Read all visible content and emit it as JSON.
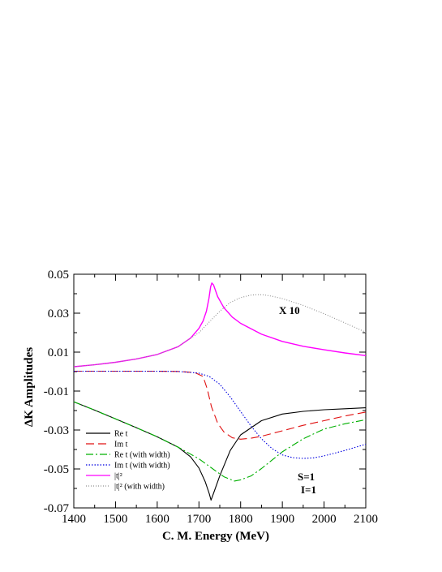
{
  "chart_data": {
    "type": "line",
    "title": "",
    "xlabel": "C. M. Energy (MeV)",
    "ylabel": "ΔK Amplitudes",
    "xlim": [
      1400,
      2100
    ],
    "ylim": [
      -0.07,
      0.05
    ],
    "xticks": [
      1400,
      1500,
      1600,
      1700,
      1800,
      1900,
      2000,
      2100
    ],
    "yticks": [
      -0.07,
      -0.05,
      -0.03,
      -0.01,
      0.01,
      0.03,
      0.05
    ],
    "xtick_labels": [
      "1400",
      "1500",
      "1600",
      "1700",
      "1800",
      "1900",
      "2000",
      "2100"
    ],
    "ytick_labels": [
      "-0.07",
      "-0.05",
      "-0.03",
      "-0.01",
      "0.01",
      "0.03",
      "0.05"
    ],
    "grid": false,
    "legend_position": "bottom-left",
    "annotations": {
      "scale_factor": "X 10",
      "S": "S=1",
      "I": "I=1"
    },
    "series": [
      {
        "name": "Re t",
        "color": "#000000",
        "dash": "solid",
        "x": [
          1400,
          1450,
          1500,
          1550,
          1600,
          1650,
          1680,
          1700,
          1715,
          1725,
          1729,
          1735,
          1750,
          1775,
          1800,
          1850,
          1900,
          1950,
          2000,
          2050,
          2100
        ],
        "y": [
          -0.0155,
          -0.0198,
          -0.0243,
          -0.0288,
          -0.0335,
          -0.0388,
          -0.0438,
          -0.0495,
          -0.0565,
          -0.0628,
          -0.066,
          -0.0625,
          -0.0535,
          -0.0405,
          -0.0325,
          -0.0252,
          -0.0218,
          -0.0204,
          -0.0196,
          -0.0191,
          -0.0186
        ]
      },
      {
        "name": "Im t",
        "color": "#e01010",
        "dash": "long-dash",
        "x": [
          1400,
          1500,
          1600,
          1650,
          1690,
          1710,
          1720,
          1730,
          1745,
          1760,
          1780,
          1800,
          1825,
          1850,
          1900,
          1950,
          2000,
          2050,
          2100
        ],
        "y": [
          0.0002,
          0.0002,
          0.0002,
          0.0001,
          -0.0005,
          -0.0025,
          -0.009,
          -0.018,
          -0.0265,
          -0.031,
          -0.034,
          -0.0347,
          -0.0342,
          -0.0332,
          -0.0304,
          -0.0276,
          -0.0252,
          -0.0228,
          -0.0208
        ]
      },
      {
        "name": "Re t (with width)",
        "color": "#00b000",
        "dash": "dash-dot",
        "x": [
          1400,
          1450,
          1500,
          1550,
          1600,
          1650,
          1700,
          1740,
          1760,
          1785,
          1800,
          1825,
          1850,
          1900,
          1950,
          2000,
          2050,
          2100
        ],
        "y": [
          -0.0155,
          -0.0198,
          -0.0243,
          -0.0288,
          -0.0335,
          -0.0388,
          -0.0448,
          -0.051,
          -0.054,
          -0.0562,
          -0.0556,
          -0.0536,
          -0.0498,
          -0.0412,
          -0.0345,
          -0.0295,
          -0.0268,
          -0.0247
        ]
      },
      {
        "name": "Im t (with width)",
        "color": "#0000e0",
        "dash": "dotted",
        "x": [
          1400,
          1500,
          1600,
          1650,
          1700,
          1725,
          1750,
          1775,
          1800,
          1825,
          1850,
          1875,
          1900,
          1925,
          1950,
          1975,
          2000,
          2050,
          2100
        ],
        "y": [
          0.0002,
          0.0002,
          0.0002,
          0.0001,
          -0.0008,
          -0.0025,
          -0.0065,
          -0.013,
          -0.0205,
          -0.028,
          -0.0345,
          -0.0395,
          -0.0428,
          -0.0442,
          -0.0446,
          -0.0443,
          -0.0433,
          -0.0405,
          -0.0373
        ]
      },
      {
        "name": "|t|²",
        "color": "#ff00ff",
        "dash": "solid",
        "x": [
          1400,
          1450,
          1500,
          1550,
          1600,
          1650,
          1680,
          1700,
          1710,
          1718,
          1724,
          1728,
          1731,
          1735,
          1745,
          1760,
          1780,
          1800,
          1850,
          1900,
          1950,
          2000,
          2050,
          2100
        ],
        "y": [
          0.0025,
          0.0035,
          0.0048,
          0.0065,
          0.0088,
          0.0128,
          0.0172,
          0.0222,
          0.026,
          0.031,
          0.0375,
          0.0435,
          0.0455,
          0.0445,
          0.0385,
          0.0328,
          0.028,
          0.0248,
          0.0192,
          0.0155,
          0.013,
          0.0112,
          0.0096,
          0.0082
        ]
      },
      {
        "name": "|t|² (with width)",
        "color": "#909090",
        "dash": "fine-dotted",
        "x": [
          1400,
          1450,
          1500,
          1550,
          1600,
          1650,
          1700,
          1725,
          1750,
          1775,
          1800,
          1825,
          1840,
          1855,
          1875,
          1900,
          1950,
          2000,
          2050,
          2100
        ],
        "y": [
          0.0025,
          0.0035,
          0.0048,
          0.0065,
          0.0088,
          0.0128,
          0.02,
          0.0255,
          0.031,
          0.0355,
          0.038,
          0.0393,
          0.0395,
          0.0394,
          0.0387,
          0.0375,
          0.034,
          0.0297,
          0.025,
          0.0202
        ]
      }
    ]
  }
}
